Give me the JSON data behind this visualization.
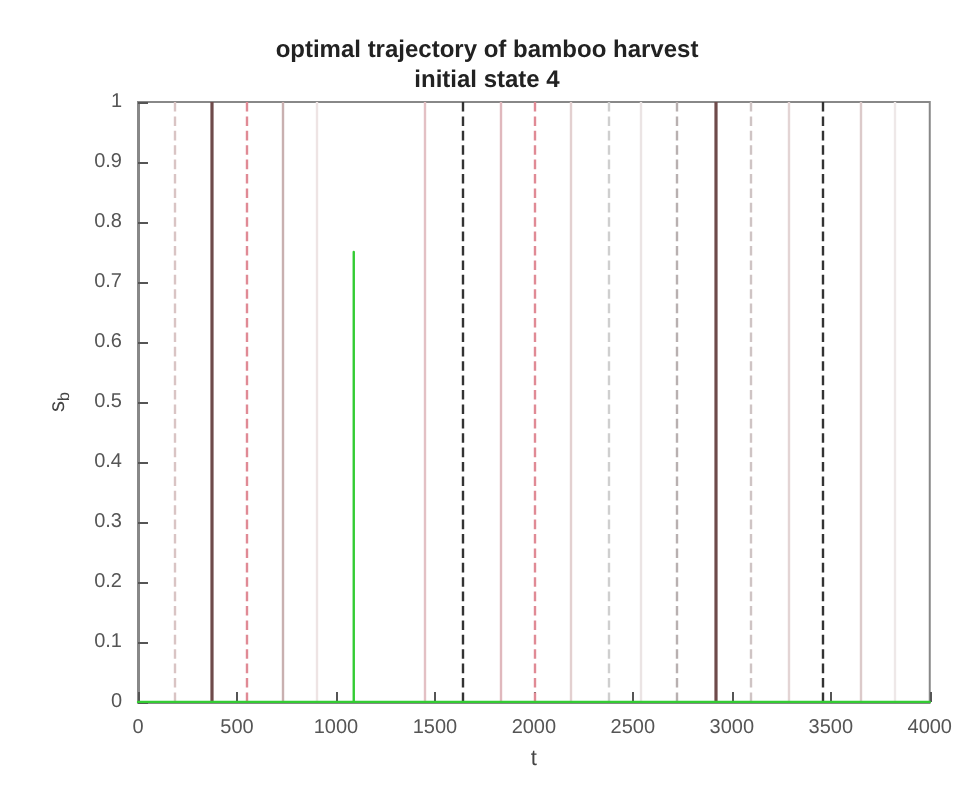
{
  "chart_data": {
    "type": "line",
    "title": "optimal trajectory of bamboo harvest\ninitial state 4",
    "xlabel": "t",
    "ylabel": "s$_{b}$",
    "series": [
      {
        "color": "#33cc33",
        "x": [
          0,
          1090,
          1090,
          1090,
          4000
        ],
        "values": [
          0,
          0,
          0.75,
          0,
          0
        ]
      }
    ],
    "xlim": [
      0,
      4000
    ],
    "xticks": [
      0,
      500,
      1000,
      1500,
      2000,
      2500,
      3000,
      3500,
      4000
    ],
    "ylim": [
      0,
      1
    ],
    "yticks": [
      0,
      0.1,
      0.2,
      0.3,
      0.4,
      0.5,
      0.6,
      0.7,
      0.8,
      0.9,
      1
    ],
    "grid": false,
    "marker": "none",
    "line_style": "solid",
    "ref_lines": [
      {
        "axis": "x",
        "value": 184,
        "color": "#d9c4c4",
        "line_style": "dashed"
      },
      {
        "axis": "x",
        "value": 367,
        "color": "#6e4a4a",
        "line_style": "solid"
      },
      {
        "axis": "x",
        "value": 548,
        "color": "#e08a95",
        "line_style": "dashed"
      },
      {
        "axis": "x",
        "value": 731,
        "color": "#c9b0b0",
        "line_style": "solid"
      },
      {
        "axis": "x",
        "value": 900,
        "color": "#eee4e4",
        "line_style": "solid"
      },
      {
        "axis": "x",
        "value": 1449,
        "color": "#e3c0c4",
        "line_style": "solid"
      },
      {
        "axis": "x",
        "value": 1639,
        "color": "#333333",
        "line_style": "dashed"
      },
      {
        "axis": "x",
        "value": 1833,
        "color": "#e0b8bd",
        "line_style": "solid"
      },
      {
        "axis": "x",
        "value": 2003,
        "color": "#e08a95",
        "line_style": "dashed"
      },
      {
        "axis": "x",
        "value": 2180,
        "color": "#e3d0d0",
        "line_style": "solid"
      },
      {
        "axis": "x",
        "value": 2380,
        "color": "#cfcfcf",
        "line_style": "dashed"
      },
      {
        "axis": "x",
        "value": 2541,
        "color": "#ebe4e4",
        "line_style": "solid"
      },
      {
        "axis": "x",
        "value": 2721,
        "color": "#b8b0b0",
        "line_style": "dashed"
      },
      {
        "axis": "x",
        "value": 2921,
        "color": "#6e4a4a",
        "line_style": "solid"
      },
      {
        "axis": "x",
        "value": 3092,
        "color": "#cfc4c4",
        "line_style": "dashed"
      },
      {
        "axis": "x",
        "value": 3285,
        "color": "#e3d4d4",
        "line_style": "solid"
      },
      {
        "axis": "x",
        "value": 3459,
        "color": "#333333",
        "line_style": "dashed"
      },
      {
        "axis": "x",
        "value": 3655,
        "color": "#dccaca",
        "line_style": "solid"
      },
      {
        "axis": "x",
        "value": 3822,
        "color": "#eee8e8",
        "line_style": "solid"
      }
    ]
  }
}
